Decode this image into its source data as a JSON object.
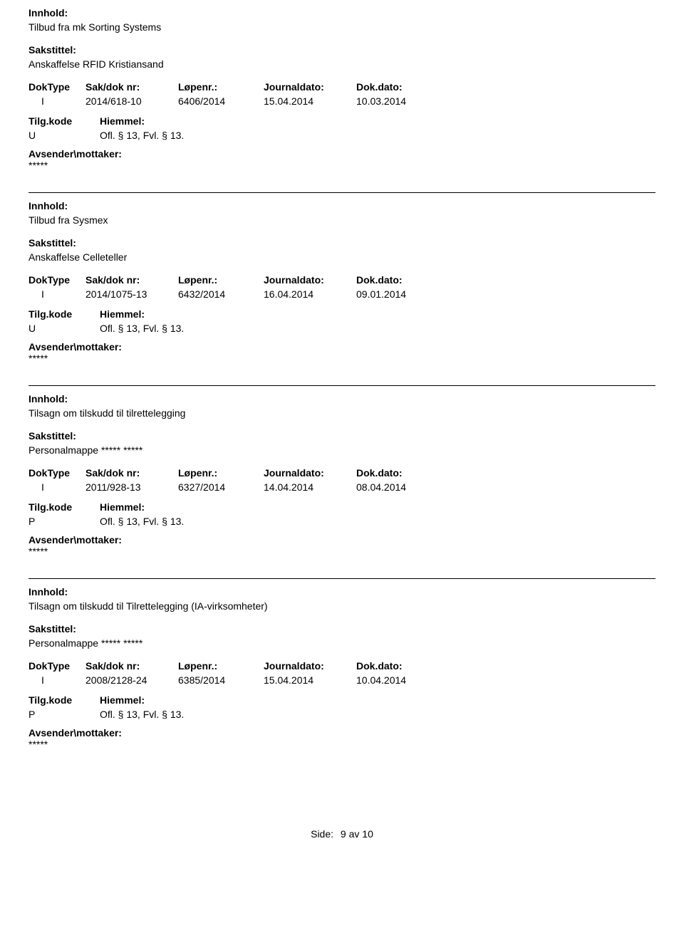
{
  "labels": {
    "innhold": "Innhold:",
    "sakstittel": "Sakstittel:",
    "doktype": "DokType",
    "sakdoknr": "Sak/dok nr:",
    "lopenr": "Løpenr.:",
    "journaldato": "Journaldato:",
    "dokdato": "Dok.dato:",
    "tilgkode": "Tilg.kode",
    "hiemmel": "Hiemmel:",
    "avsender": "Avsender\\mottaker:"
  },
  "entries": [
    {
      "innhold": "Tilbud fra mk Sorting Systems",
      "sakstittel": "Anskaffelse RFID Kristiansand",
      "doktype": "I",
      "sakdoknr": "2014/618-10",
      "lopenr": "6406/2014",
      "journaldato": "15.04.2014",
      "dokdato": "10.03.2014",
      "tilgkode": "U",
      "hiemmel": "Ofl. § 13, Fvl. § 13.",
      "avsender": "*****"
    },
    {
      "innhold": "Tilbud fra Sysmex",
      "sakstittel": "Anskaffelse Celleteller",
      "doktype": "I",
      "sakdoknr": "2014/1075-13",
      "lopenr": "6432/2014",
      "journaldato": "16.04.2014",
      "dokdato": "09.01.2014",
      "tilgkode": "U",
      "hiemmel": "Ofl. § 13, Fvl. § 13.",
      "avsender": "*****"
    },
    {
      "innhold": "Tilsagn om tilskudd til tilrettelegging",
      "sakstittel": "Personalmappe ***** *****",
      "doktype": "I",
      "sakdoknr": "2011/928-13",
      "lopenr": "6327/2014",
      "journaldato": "14.04.2014",
      "dokdato": "08.04.2014",
      "tilgkode": "P",
      "hiemmel": "Ofl. § 13, Fvl. § 13.",
      "avsender": "*****"
    },
    {
      "innhold": "Tilsagn om tilskudd til Tilrettelegging (IA-virksomheter)",
      "sakstittel": "Personalmappe ***** *****",
      "doktype": "I",
      "sakdoknr": "2008/2128-24",
      "lopenr": "6385/2014",
      "journaldato": "15.04.2014",
      "dokdato": "10.04.2014",
      "tilgkode": "P",
      "hiemmel": "Ofl. § 13, Fvl. § 13.",
      "avsender": "*****"
    }
  ],
  "footer": {
    "label": "Side:",
    "current": "9",
    "sep": "av",
    "total": "10"
  }
}
